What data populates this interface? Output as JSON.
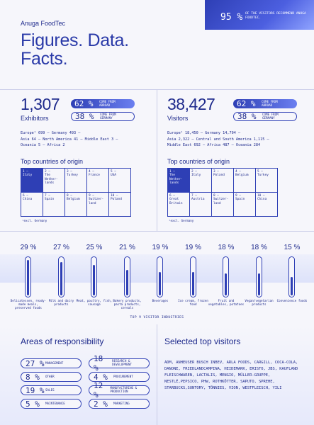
{
  "header": {
    "brand": "Anuga FoodTec",
    "title_line1": "Figures. Data.",
    "title_line2": "Facts.",
    "banner_pct": "95 %",
    "banner_text": "OF THE VISITORS RECOMMEND ANUGA FOODTEC."
  },
  "exhibitors": {
    "number": "1,307",
    "label": "Exhibitors",
    "abroad_pct": "62 %",
    "abroad_text": "COME FROM ABROAD",
    "germany_pct": "38 %",
    "germany_text": "COME FROM GERMANY",
    "regions_line1": "Europe¹ 699 — Germany 493 —",
    "regions_line2": "Asia 64 — North America 41 — Middle East 3 —",
    "regions_line3": "Oceania 5 — Africa 2",
    "origin_title": "Top countries of origin",
    "countries": [
      [
        "1 —\nItaly",
        "2 —\nThe Nether-\nlands",
        "3 —\nTurkey",
        "4 —\nFrance",
        "5 —\nUSA"
      ],
      [
        "6 —\nChina",
        "7 —\nSpain",
        "8 —\nBelgium",
        "9 —\nSwitzer-\nland",
        "10 —\nPoland"
      ]
    ],
    "footnote": "¹excl. Germany"
  },
  "visitors": {
    "number": "38,427",
    "label": "Visitors",
    "abroad_pct": "62 %",
    "abroad_text": "COME FROM ABROAD",
    "germany_pct": "38 %",
    "germany_text": "COME FROM GERMANY",
    "regions_line1": "Europe¹ 18,450 — Germany 14,704 —",
    "regions_line2": "Asia 2,322 — Central and South America 1,115 —",
    "regions_line3": "Middle East 692 — Africa 487 — Oceania 284",
    "origin_title": "Top countries of origin",
    "countries": [
      [
        "1 —\nThe\nNether-\nlands",
        "2 —\nItaly",
        "3 —\nPoland",
        "4 —\nBelgium",
        "5 —\nTurkey"
      ],
      [
        "6 —\nGreat\nBritain",
        "7 —\nAustria",
        "8 —\nSwitzer-\nland",
        "9 —\nSpain",
        "10 —\nChina"
      ]
    ],
    "footnote": "¹excl. Germany"
  },
  "industries": {
    "caption": "TOP 9 VISITOR INDUSTRIES",
    "items": [
      {
        "pct": "29 %",
        "value": 29,
        "label": "Delicatessen, ready-made meals, preserved foods"
      },
      {
        "pct": "27 %",
        "value": 27,
        "label": "Milk and dairy products"
      },
      {
        "pct": "25 %",
        "value": 25,
        "label": "Meat, poultry, fish, sausage"
      },
      {
        "pct": "21 %",
        "value": 21,
        "label": "Bakery products, pasta products, cereals"
      },
      {
        "pct": "19 %",
        "value": 19,
        "label": "Beverages"
      },
      {
        "pct": "19 %",
        "value": 19,
        "label": "Ice cream, frozen food"
      },
      {
        "pct": "18 %",
        "value": 18,
        "label": "Fruit and vegetables, potatoes"
      },
      {
        "pct": "18 %",
        "value": 18,
        "label": "Vegan/vegetarian products"
      },
      {
        "pct": "15 %",
        "value": 15,
        "label": "Convenience foods"
      }
    ]
  },
  "responsibility": {
    "title": "Areas of responsibility",
    "items": [
      {
        "pct": "27 %",
        "label": "MANAGEMENT"
      },
      {
        "pct": "18 %",
        "label": "RESEARCH & DEVELOPMENT"
      },
      {
        "pct": "8 %",
        "label": "OTHER"
      },
      {
        "pct": "4 %",
        "label": "PROCUREMENT"
      },
      {
        "pct": "19 %",
        "label": "SALES"
      },
      {
        "pct": "12 %",
        "label": "MANUFACTURING & PRODUCTION"
      },
      {
        "pct": "5 %",
        "label": "MAINTENANCE"
      },
      {
        "pct": "2 %",
        "label": "MARKETING"
      }
    ]
  },
  "top_visitors": {
    "title": "Selected top visitors",
    "text": "ADM, ANHEUSER BUSCH INBEV, ARLA FOODS, CARGILL, COCA-COLA, DANONE, FRIEDLANDCAMPINA, HEIDEMARK, ERISTO, JBS, KAUFLAND FLEISCHWAREN, LACTALIS, MENGIO, MÜLLER-GRUPPE, NESTLÉ,PEPSICO, PHW, ROTHKÖTTER, SAPUTO, SPREHE, STARBUCKS,SUNTORY, TÖNNIES, VION, WESTFLEISCH, YILI"
  },
  "colors": {
    "accent": "#2e3fb5",
    "text": "#1e2a8c",
    "background": "#f6f6fb"
  }
}
